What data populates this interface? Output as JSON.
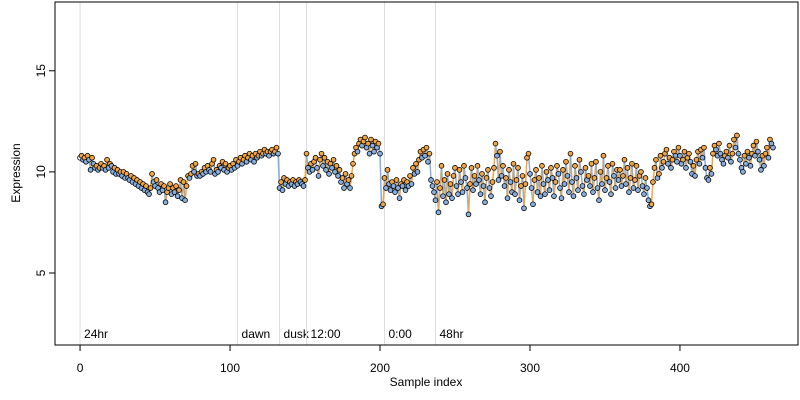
{
  "chart_data": {
    "type": "line-points",
    "x_label": "Sample index",
    "y_label": "Expression",
    "xlim": [
      -16.7,
      478.7
    ],
    "xticks": [
      0,
      100,
      200,
      300,
      400
    ],
    "ylim": [
      1.44,
      18.4
    ],
    "yticks": [
      5,
      10,
      15
    ],
    "rise_color": "#f2a541",
    "fall_color": "#86aee0",
    "marker_line_color": "#dddddd",
    "marker_label_color": "#999999",
    "annotations": [
      {
        "x": 0,
        "label": "24hr"
      },
      {
        "x": 105,
        "label": "dawn"
      },
      {
        "x": 133,
        "label": "dusk"
      },
      {
        "x": 151,
        "label": "12:00"
      },
      {
        "x": 203,
        "label": "0:00"
      },
      {
        "x": 237,
        "label": "48hr"
      }
    ],
    "values": [
      10.7,
      10.8,
      10.6,
      10.7,
      10.5,
      10.8,
      10.6,
      10.1,
      10.7,
      10.4,
      10.2,
      10.3,
      10.1,
      10.2,
      10.4,
      10.2,
      10.3,
      10.1,
      10.6,
      10.2,
      10.4,
      10.3,
      10.0,
      10.2,
      9.9,
      10.1,
      9.9,
      10.0,
      9.8,
      10.0,
      9.7,
      9.9,
      9.7,
      9.6,
      9.8,
      9.5,
      9.7,
      9.4,
      9.6,
      9.3,
      9.5,
      9.2,
      9.4,
      9.1,
      9.3,
      9.0,
      8.9,
      9.2,
      9.9,
      9.5,
      9.3,
      9.6,
      9.2,
      9.0,
      9.4,
      9.1,
      9.3,
      8.5,
      9.0,
      9.2,
      9.4,
      8.9,
      9.2,
      9.0,
      9.3,
      8.8,
      9.1,
      9.6,
      8.7,
      9.5,
      8.6,
      9.3,
      9.8,
      9.7,
      9.9,
      10.3,
      10.0,
      10.4,
      9.8,
      9.9,
      9.8,
      10.0,
      9.9,
      10.2,
      10.0,
      10.3,
      10.1,
      10.0,
      10.4,
      10.6,
      9.9,
      10.1,
      10.0,
      10.3,
      10.2,
      10.5,
      10.1,
      10.4,
      10.0,
      10.2,
      10.3,
      10.1,
      10.4,
      10.2,
      10.6,
      10.3,
      10.5,
      10.7,
      10.4,
      10.6,
      10.8,
      10.5,
      10.7,
      10.9,
      10.6,
      10.8,
      10.5,
      10.9,
      10.7,
      10.8,
      11.0,
      10.8,
      10.9,
      11.1,
      10.9,
      11.0,
      10.8,
      11.0,
      11.1,
      10.9,
      11.0,
      11.2,
      10.9,
      9.2,
      9.5,
      9.1,
      9.7,
      9.4,
      9.6,
      9.3,
      9.5,
      9.4,
      9.6,
      9.3,
      9.5,
      9.4,
      9.6,
      9.5,
      9.4,
      9.3,
      9.6,
      10.9,
      10.2,
      10.0,
      10.4,
      10.1,
      10.5,
      10.7,
      10.2,
      9.8,
      10.6,
      10.9,
      10.3,
      10.7,
      10.1,
      10.5,
      9.9,
      10.4,
      10.2,
      10.6,
      10.0,
      10.3,
      9.8,
      10.1,
      9.5,
      9.7,
      9.2,
      9.9,
      9.4,
      9.6,
      9.2,
      9.8,
      10.4,
      10.9,
      11.2,
      11.0,
      11.4,
      11.6,
      11.3,
      11.5,
      11.7,
      11.2,
      11.4,
      10.9,
      11.6,
      11.3,
      11.0,
      11.5,
      11.2,
      11.4,
      10.9,
      8.3,
      8.4,
      9.7,
      9.2,
      10.1,
      9.4,
      9.1,
      9.5,
      9.3,
      9.0,
      9.6,
      9.2,
      8.7,
      9.4,
      9.3,
      9.6,
      9.1,
      9.5,
      9.3,
      9.8,
      9.4,
      10.2,
      9.9,
      10.4,
      10.0,
      10.6,
      11.0,
      10.7,
      11.1,
      10.8,
      11.2,
      10.5,
      10.9,
      9.6,
      9.3,
      9.0,
      8.6,
      9.5,
      8.0,
      9.2,
      10.3,
      8.8,
      9.6,
      8.5,
      9.9,
      8.9,
      9.4,
      8.7,
      9.8,
      10.2,
      9.3,
      8.9,
      10.1,
      9.5,
      9.0,
      10.3,
      9.7,
      9.2,
      7.9,
      9.4,
      10.2,
      9.1,
      9.8,
      9.4,
      10.3,
      9.6,
      8.9,
      9.9,
      9.3,
      8.5,
      9.7,
      10.1,
      9.2,
      8.8,
      9.5,
      10.2,
      11.4,
      10.8,
      9.6,
      11.0,
      9.8,
      10.3,
      9.3,
      9.7,
      8.7,
      10.1,
      9.5,
      9.0,
      10.4,
      8.9,
      9.6,
      10.2,
      8.6,
      9.3,
      9.8,
      8.2,
      9.4,
      10.7,
      10.9,
      9.9,
      9.2,
      8.4,
      9.6,
      10.1,
      9.0,
      9.7,
      8.8,
      10.3,
      9.4,
      8.9,
      10.0,
      9.6,
      9.1,
      10.2,
      9.7,
      8.8,
      9.5,
      10.3,
      9.9,
      9.2,
      8.7,
      10.1,
      9.4,
      10.5,
      9.8,
      9.0,
      10.9,
      9.5,
      8.8,
      10.3,
      9.7,
      9.1,
      10.6,
      10.0,
      9.3,
      8.9,
      10.2,
      9.6,
      9.8,
      9.3,
      10.4,
      9.0,
      9.7,
      10.5,
      9.2,
      8.6,
      10.0,
      9.4,
      10.8,
      9.1,
      9.7,
      10.3,
      9.5,
      8.9,
      10.4,
      9.8,
      9.2,
      10.1,
      9.6,
      10.1,
      9.3,
      9.8,
      10.6,
      9.4,
      10.2,
      9.0,
      9.7,
      10.4,
      9.2,
      9.6,
      10.3,
      9.1,
      9.8,
      10.0,
      9.3,
      8.9,
      9.7,
      9.2,
      8.6,
      8.3,
      8.4,
      9.5,
      10.2,
      10.6,
      9.7,
      9.9,
      10.8,
      10.2,
      10.5,
      10.9,
      11.1,
      10.4,
      10.7,
      10.2,
      10.6,
      11.0,
      10.8,
      10.5,
      11.2,
      10.8,
      10.4,
      10.6,
      11.0,
      10.2,
      10.7,
      10.9,
      10.5,
      9.9,
      10.3,
      9.8,
      10.6,
      11.0,
      10.4,
      11.1,
      10.7,
      11.2,
      10.2,
      9.7,
      9.6,
      10.2,
      9.9,
      10.9,
      11.3,
      11.1,
      10.8,
      11.4,
      10.9,
      10.6,
      10.4,
      10.8,
      11.0,
      10.7,
      11.3,
      10.5,
      10.9,
      11.6,
      11.2,
      11.8,
      10.9,
      10.6,
      10.2,
      10.0,
      10.8,
      10.4,
      11.0,
      10.7,
      10.3,
      10.9,
      11.3,
      10.8,
      11.5,
      11.0,
      10.6,
      10.1,
      10.8,
      10.3,
      10.9,
      11.2,
      10.7,
      11.6,
      11.4,
      11.2
    ]
  }
}
